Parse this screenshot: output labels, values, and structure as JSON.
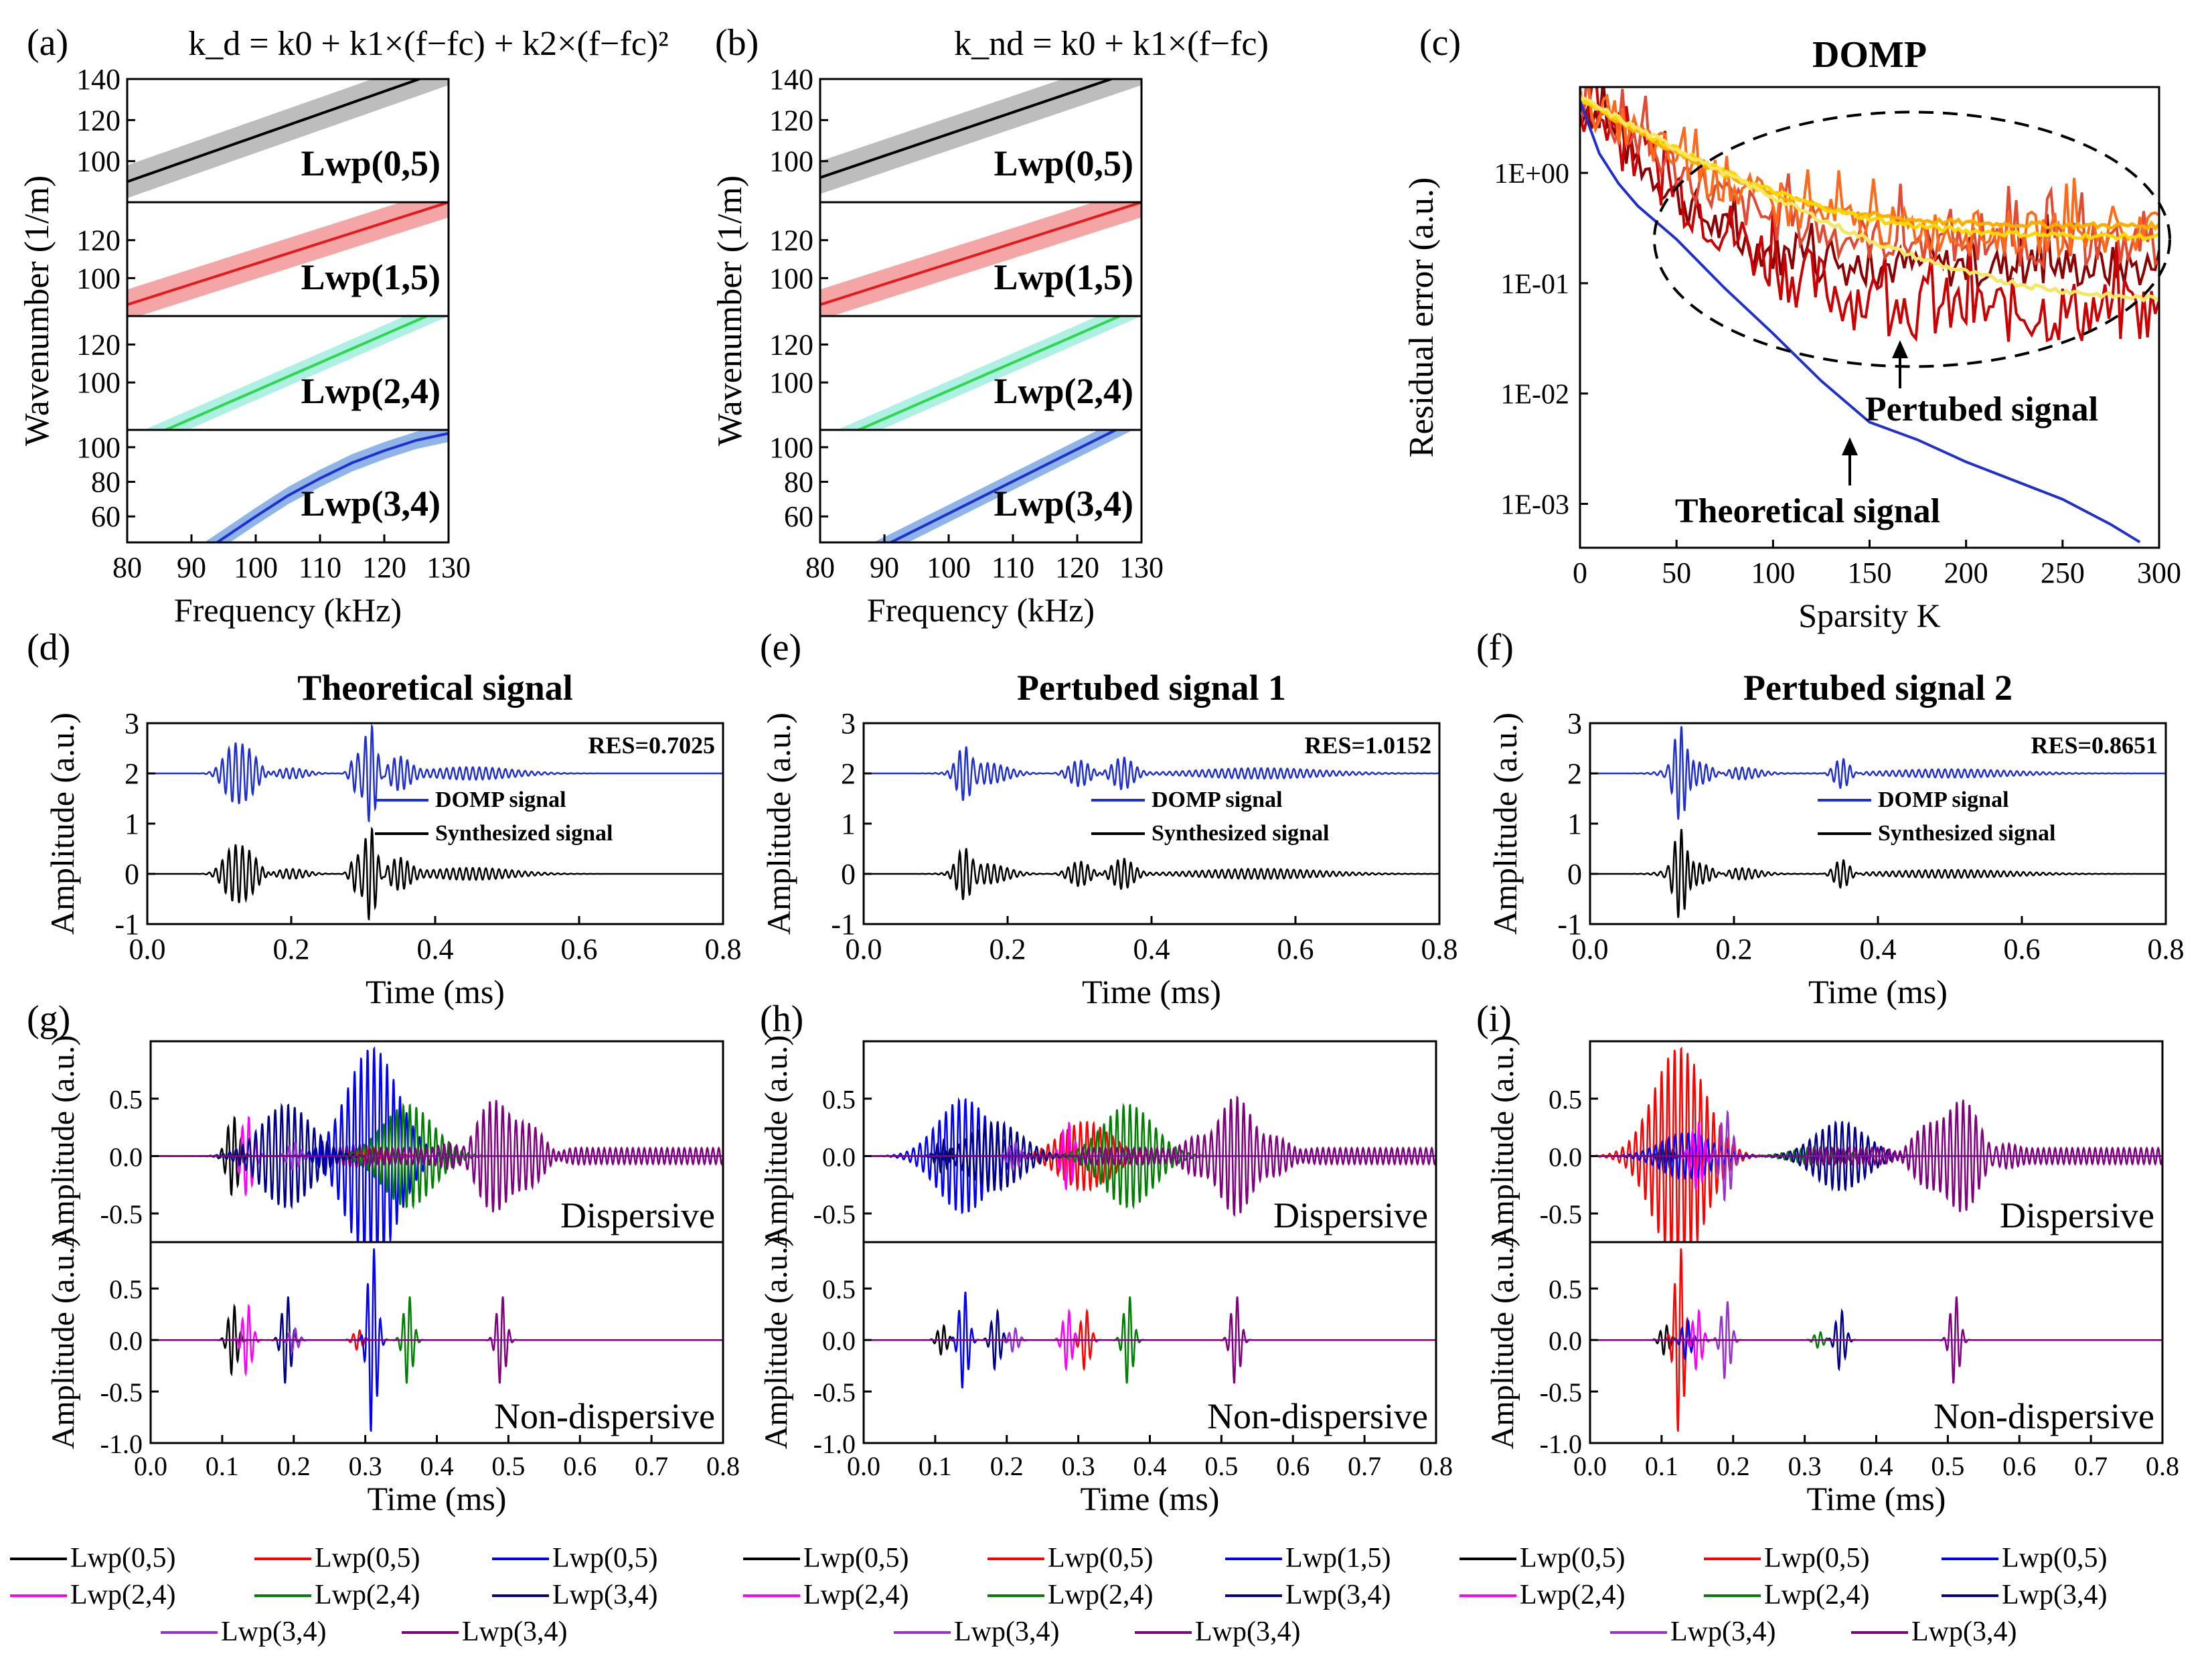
{
  "figure": {
    "panels": [
      {
        "id": "a",
        "label": "(a)",
        "title": "k_d = k0 + k1×(f−fc) + k2×(f−fc)²"
      },
      {
        "id": "b",
        "label": "(b)",
        "title": "k_nd = k0 + k1×(f−fc)"
      },
      {
        "id": "c",
        "label": "(c)",
        "title": "DOMP"
      },
      {
        "id": "d",
        "label": "(d)",
        "title": "Theoretical signal"
      },
      {
        "id": "e",
        "label": "(e)",
        "title": "Pertubed signal 1"
      },
      {
        "id": "f",
        "label": "(f)",
        "title": "Pertubed signal 2"
      },
      {
        "id": "g",
        "label": "(g)",
        "title": ""
      },
      {
        "id": "h",
        "label": "(h)",
        "title": ""
      },
      {
        "id": "i",
        "label": "(i)",
        "title": ""
      }
    ]
  },
  "chart_data": [
    {
      "id": "a",
      "type": "line",
      "title": "k_d = k0 + k1×(f−fc) + k2×(f−fc)²",
      "xlabel": "Frequency (kHz)",
      "ylabel": "Wavenumber (1/m)",
      "xlim": [
        80,
        130
      ],
      "xticks": [
        "80",
        "90",
        "100",
        "110",
        "120",
        "130"
      ],
      "subplots": [
        {
          "name": "Lwp(0,5)",
          "color": "#000000",
          "band": "#bdbdbd",
          "ylim": [
            80,
            140
          ],
          "yticks": [
            "100",
            "120",
            "140"
          ],
          "x": [
            80,
            130
          ],
          "y": [
            90,
            145
          ],
          "bandwidth": 8
        },
        {
          "name": "Lwp(1,5)",
          "color": "#e41a1c",
          "band": "#f4a6a6",
          "ylim": [
            80,
            140
          ],
          "yticks": [
            "100",
            "120"
          ],
          "x": [
            80,
            130
          ],
          "y": [
            86,
            140
          ],
          "bandwidth": 8
        },
        {
          "name": "Lwp(2,4)",
          "color": "#2bd94a",
          "band": "#aef0e4",
          "ylim": [
            75,
            135
          ],
          "yticks": [
            "100",
            "120"
          ],
          "x": [
            86,
            130
          ],
          "y": [
            75,
            140
          ],
          "bandwidth": 5
        },
        {
          "name": "Lwp(3,4)",
          "color": "#1f2fd0",
          "band": "#8fb4e8",
          "ylim": [
            45,
            110
          ],
          "yticks": [
            "60",
            "80",
            "100"
          ],
          "x": [
            94,
            100,
            105,
            110,
            115,
            120,
            125,
            130
          ],
          "y": [
            45,
            60,
            72,
            82,
            91,
            98,
            104,
            108
          ],
          "bandwidth": 5
        }
      ]
    },
    {
      "id": "b",
      "type": "line",
      "title": "k_nd = k0 + k1×(f−fc)",
      "xlabel": "Frequency (kHz)",
      "ylabel": "Wavenumber (1/m)",
      "xlim": [
        80,
        130
      ],
      "xticks": [
        "80",
        "90",
        "100",
        "110",
        "120",
        "130"
      ],
      "subplots": [
        {
          "name": "Lwp(0,5)",
          "color": "#000000",
          "band": "#bdbdbd",
          "ylim": [
            80,
            140
          ],
          "yticks": [
            "100",
            "120",
            "140"
          ],
          "x": [
            80,
            130
          ],
          "y": [
            92,
            145
          ],
          "bandwidth": 8
        },
        {
          "name": "Lwp(1,5)",
          "color": "#e41a1c",
          "band": "#f4a6a6",
          "ylim": [
            80,
            140
          ],
          "yticks": [
            "100",
            "120"
          ],
          "x": [
            80,
            130
          ],
          "y": [
            86,
            140
          ],
          "bandwidth": 8
        },
        {
          "name": "Lwp(2,4)",
          "color": "#2bd94a",
          "band": "#aef0e4",
          "ylim": [
            75,
            135
          ],
          "yticks": [
            "100",
            "120"
          ],
          "x": [
            86,
            130
          ],
          "y": [
            75,
            140
          ],
          "bandwidth": 5
        },
        {
          "name": "Lwp(3,4)",
          "color": "#1f2fd0",
          "band": "#8fb4e8",
          "ylim": [
            45,
            110
          ],
          "yticks": [
            "60",
            "80",
            "100"
          ],
          "x": [
            91,
            126
          ],
          "y": [
            45,
            110
          ],
          "bandwidth": 5
        }
      ]
    },
    {
      "id": "c",
      "type": "line",
      "title": "DOMP",
      "xlabel": "Sparsity K",
      "ylabel": "Residual error (a.u.)",
      "xlim": [
        0,
        300
      ],
      "xticks": [
        "0",
        "50",
        "100",
        "150",
        "200",
        "250",
        "300"
      ],
      "yscale": "log",
      "ylim": [
        0.0004,
        6
      ],
      "yticks": [
        "1E-03",
        "1E-02",
        "1E-01",
        "1E+00"
      ],
      "annotations": [
        "Pertubed signal",
        "Theoretical signal"
      ],
      "series": [
        {
          "name": "Theoretical signal",
          "color": "#1f2fd0",
          "x": [
            0,
            10,
            20,
            30,
            50,
            75,
            100,
            125,
            150,
            175,
            200,
            250,
            275,
            290
          ],
          "y": [
            4.5,
            1.5,
            0.8,
            0.5,
            0.25,
            0.09,
            0.035,
            0.013,
            0.0055,
            0.0038,
            0.0024,
            0.0011,
            0.00065,
            0.00045
          ]
        },
        {
          "name": "Pertubed signal",
          "colors": [
            "#8b0000",
            "#cc0000",
            "#e34a33",
            "#ff6a1a",
            "#ffae00",
            "#ffd700",
            "#f5e663"
          ],
          "levels": [
            0.14,
            0.055,
            0.22,
            0.28,
            0.33,
            0.26,
            0.065
          ]
        }
      ]
    },
    {
      "id": "d",
      "type": "line",
      "title": "Theoretical signal",
      "xlabel": "Time (ms)",
      "ylabel": "Amplitude (a.u.)",
      "xlim": [
        0,
        0.8
      ],
      "ylim": [
        -1,
        3
      ],
      "xticks": [
        "0.0",
        "0.2",
        "0.4",
        "0.6",
        "0.8"
      ],
      "yticks": [
        "-1",
        "0",
        "1",
        "2",
        "3"
      ],
      "res": "RES=0.7025",
      "legend": [
        "DOMP signal",
        "Synthesized signal"
      ],
      "series": [
        {
          "name": "DOMP signal",
          "color": "#1f2fd0",
          "offset": 2
        },
        {
          "name": "Synthesized signal",
          "color": "#000000",
          "offset": 0
        }
      ],
      "packets": [
        [
          0.12,
          0.5,
          0.02
        ],
        [
          0.14,
          0.4,
          0.02
        ],
        [
          0.2,
          0.1,
          0.03
        ],
        [
          0.29,
          0.35,
          0.01
        ],
        [
          0.31,
          0.95,
          0.012
        ],
        [
          0.35,
          0.3,
          0.02
        ],
        [
          0.45,
          0.12,
          0.08
        ]
      ]
    },
    {
      "id": "e",
      "type": "line",
      "title": "Pertubed signal 1",
      "xlabel": "Time (ms)",
      "ylabel": "Amplitude (a.u.)",
      "xlim": [
        0,
        0.8
      ],
      "ylim": [
        -1,
        3
      ],
      "xticks": [
        "0.0",
        "0.2",
        "0.4",
        "0.6",
        "0.8"
      ],
      "yticks": [
        "-1",
        "0",
        "1",
        "2",
        "3"
      ],
      "res": "RES=1.0152",
      "legend": [
        "DOMP signal",
        "Synthesized signal"
      ],
      "series": [
        {
          "name": "DOMP signal",
          "color": "#1f2fd0",
          "offset": 2
        },
        {
          "name": "Synthesized signal",
          "color": "#000000",
          "offset": 0
        }
      ],
      "packets": [
        [
          0.14,
          0.55,
          0.015
        ],
        [
          0.17,
          0.2,
          0.04
        ],
        [
          0.3,
          0.25,
          0.02
        ],
        [
          0.36,
          0.3,
          0.02
        ],
        [
          0.55,
          0.1,
          0.12
        ]
      ]
    },
    {
      "id": "f",
      "type": "line",
      "title": "Pertubed signal 2",
      "xlabel": "Time (ms)",
      "ylabel": "Amplitude (a.u.)",
      "xlim": [
        0,
        0.8
      ],
      "ylim": [
        -1,
        3
      ],
      "xticks": [
        "0.0",
        "0.2",
        "0.4",
        "0.6",
        "0.8"
      ],
      "yticks": [
        "-1",
        "0",
        "1",
        "2",
        "3"
      ],
      "res": "RES=0.8651",
      "legend": [
        "DOMP signal",
        "Synthesized signal"
      ],
      "series": [
        {
          "name": "DOMP signal",
          "color": "#1f2fd0",
          "offset": 2
        },
        {
          "name": "Synthesized signal",
          "color": "#000000",
          "offset": 0
        }
      ],
      "packets": [
        [
          0.125,
          0.9,
          0.012
        ],
        [
          0.15,
          0.25,
          0.04
        ],
        [
          0.2,
          0.15,
          0.04
        ],
        [
          0.35,
          0.3,
          0.015
        ],
        [
          0.5,
          0.08,
          0.12
        ]
      ]
    },
    {
      "id": "g",
      "type": "line",
      "xlabel": "Time (ms)",
      "ylabel": "Amplitude (a.u.)",
      "xlim": [
        0,
        0.8
      ],
      "xticks": [
        "0.0",
        "0.1",
        "0.2",
        "0.3",
        "0.4",
        "0.5",
        "0.6",
        "0.7",
        "0.8"
      ],
      "subplot_labels": [
        "Dispersive",
        "Non-dispersive"
      ],
      "upper": {
        "ylim": [
          -0.75,
          1.0
        ],
        "yticks": [
          "0.5",
          "0.0",
          "-0.5"
        ]
      },
      "lower": {
        "ylim": [
          -1.0,
          0.95
        ],
        "yticks": [
          "0.5",
          "0.0",
          "-0.5",
          "-1.0"
        ]
      },
      "modes": [
        {
          "name": "Lwp(0,5)",
          "color": "#000000",
          "t": 0.115,
          "amp": 0.35
        },
        {
          "name": "Lwp(0,5)",
          "color": "#ff0000",
          "t": 0.29,
          "amp": 0.1
        },
        {
          "name": "Lwp(0,5)",
          "color": "#0000ff",
          "t": 0.31,
          "amp": 0.95
        },
        {
          "name": "Lwp(2,4)",
          "color": "#ff00ff",
          "t": 0.135,
          "amp": 0.35
        },
        {
          "name": "Lwp(2,4)",
          "color": "#008000",
          "t": 0.36,
          "amp": 0.45
        },
        {
          "name": "Lwp(3,4)",
          "color": "#00008b",
          "t": 0.19,
          "amp": 0.45
        },
        {
          "name": "Lwp(3,4)",
          "color": "#9932cc",
          "t": 0.2,
          "amp": 0.12
        },
        {
          "name": "Lwp(3,4)",
          "color": "#800080",
          "t": 0.49,
          "amp": 0.45
        }
      ]
    },
    {
      "id": "h",
      "type": "line",
      "xlabel": "Time (ms)",
      "ylabel": "Amplitude (a.u.)",
      "xlim": [
        0,
        0.8
      ],
      "xticks": [
        "0.0",
        "0.1",
        "0.2",
        "0.3",
        "0.4",
        "0.5",
        "0.6",
        "0.7",
        "0.8"
      ],
      "subplot_labels": [
        "Dispersive",
        "Non-dispersive"
      ],
      "upper": {
        "ylim": [
          -0.75,
          1.0
        ],
        "yticks": [
          "0.5",
          "0.0",
          "-0.5"
        ]
      },
      "lower": {
        "ylim": [
          -1.0,
          0.95
        ],
        "yticks": [
          "0.5",
          "0.0",
          "-0.5",
          "-1.0"
        ]
      },
      "modes": [
        {
          "name": "Lwp(0,5)",
          "color": "#000000",
          "t": 0.11,
          "amp": 0.15
        },
        {
          "name": "Lwp(0,5)",
          "color": "#ff0000",
          "t": 0.31,
          "amp": 0.3
        },
        {
          "name": "Lwp(1,5)",
          "color": "#0000ff",
          "t": 0.14,
          "amp": 0.5
        },
        {
          "name": "Lwp(2,4)",
          "color": "#ff00ff",
          "t": 0.285,
          "amp": 0.3
        },
        {
          "name": "Lwp(2,4)",
          "color": "#008000",
          "t": 0.37,
          "amp": 0.45
        },
        {
          "name": "Lwp(3,4)",
          "color": "#00008b",
          "t": 0.185,
          "amp": 0.3
        },
        {
          "name": "Lwp(3,4)",
          "color": "#9932cc",
          "t": 0.21,
          "amp": 0.12
        },
        {
          "name": "Lwp(3,4)",
          "color": "#800080",
          "t": 0.52,
          "amp": 0.45
        }
      ]
    },
    {
      "id": "i",
      "type": "line",
      "xlabel": "Time (ms)",
      "ylabel": "Amplitude (a.u.)",
      "xlim": [
        0,
        0.8
      ],
      "xticks": [
        "0.0",
        "0.1",
        "0.2",
        "0.3",
        "0.4",
        "0.5",
        "0.6",
        "0.7",
        "0.8"
      ],
      "subplot_labels": [
        "Dispersive",
        "Non-dispersive"
      ],
      "upper": {
        "ylim": [
          -0.75,
          1.0
        ],
        "yticks": [
          "0.5",
          "0.0",
          "-0.5"
        ]
      },
      "lower": {
        "ylim": [
          -1.0,
          0.95
        ],
        "yticks": [
          "0.5",
          "0.0",
          "-0.5",
          "-1.0"
        ]
      },
      "modes": [
        {
          "name": "Lwp(0,5)",
          "color": "#000000",
          "t": 0.105,
          "amp": 0.15
        },
        {
          "name": "Lwp(0,5)",
          "color": "#ff0000",
          "t": 0.125,
          "amp": 0.95
        },
        {
          "name": "Lwp(0,5)",
          "color": "#0000ff",
          "t": 0.135,
          "amp": 0.2
        },
        {
          "name": "Lwp(2,4)",
          "color": "#ff00ff",
          "t": 0.15,
          "amp": 0.3
        },
        {
          "name": "Lwp(2,4)",
          "color": "#008000",
          "t": 0.32,
          "amp": 0.08
        },
        {
          "name": "Lwp(3,4)",
          "color": "#00008b",
          "t": 0.35,
          "amp": 0.3
        },
        {
          "name": "Lwp(3,4)",
          "color": "#9932cc",
          "t": 0.19,
          "amp": 0.4
        },
        {
          "name": "Lwp(3,4)",
          "color": "#800080",
          "t": 0.51,
          "amp": 0.45
        }
      ]
    }
  ]
}
